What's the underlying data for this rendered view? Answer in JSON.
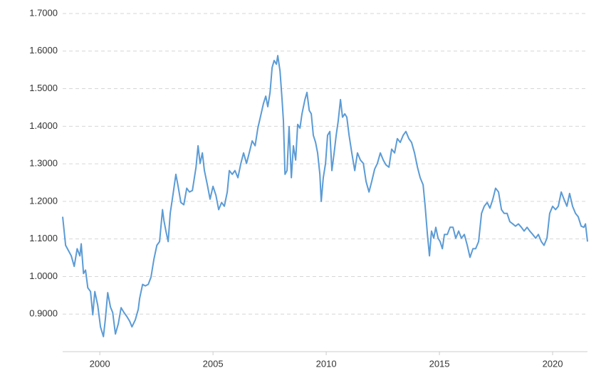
{
  "chart_data": {
    "type": "line",
    "color": "#5b9bd5",
    "grid": true,
    "xlim": [
      1998.36,
      2021.54
    ],
    "xticks": [
      2000,
      2005,
      2010,
      2015,
      2020
    ],
    "ylim": [
      0.8,
      1.7
    ],
    "yticks": [
      {
        "value": 0.9,
        "label": "0.9000"
      },
      {
        "value": 1.0,
        "label": "1.0000"
      },
      {
        "value": 1.1,
        "label": "1.1000"
      },
      {
        "value": 1.2,
        "label": "1.2000"
      },
      {
        "value": 1.3,
        "label": "1.3000"
      },
      {
        "value": 1.4,
        "label": "1.4000"
      },
      {
        "value": 1.5,
        "label": "1.5000"
      },
      {
        "value": 1.6,
        "label": "1.6000"
      },
      {
        "value": 1.7,
        "label": "1.7000"
      }
    ],
    "x": [
      1998.36,
      1998.49,
      1998.74,
      1998.87,
      1999.0,
      1999.12,
      1999.18,
      1999.28,
      1999.37,
      1999.47,
      1999.59,
      1999.69,
      1999.78,
      1999.91,
      2000.03,
      2000.16,
      2000.25,
      2000.35,
      2000.47,
      2000.57,
      2000.69,
      2000.82,
      2000.94,
      2001.07,
      2001.19,
      2001.32,
      2001.42,
      2001.57,
      2001.7,
      2001.76,
      2001.89,
      2002.01,
      2002.14,
      2002.26,
      2002.39,
      2002.52,
      2002.64,
      2002.77,
      2002.83,
      2002.92,
      2003.02,
      2003.11,
      2003.24,
      2003.36,
      2003.46,
      2003.58,
      2003.71,
      2003.84,
      2003.96,
      2004.09,
      2004.25,
      2004.34,
      2004.43,
      2004.53,
      2004.62,
      2004.75,
      2004.87,
      2005.0,
      2005.13,
      2005.25,
      2005.38,
      2005.5,
      2005.63,
      2005.72,
      2005.85,
      2005.97,
      2006.1,
      2006.23,
      2006.35,
      2006.48,
      2006.6,
      2006.73,
      2006.86,
      2006.98,
      2007.11,
      2007.23,
      2007.33,
      2007.42,
      2007.52,
      2007.61,
      2007.7,
      2007.8,
      2007.86,
      2007.96,
      2008.05,
      2008.11,
      2008.18,
      2008.27,
      2008.36,
      2008.46,
      2008.55,
      2008.65,
      2008.74,
      2008.84,
      2008.93,
      2009.06,
      2009.15,
      2009.25,
      2009.34,
      2009.43,
      2009.53,
      2009.62,
      2009.72,
      2009.78,
      2009.87,
      2009.97,
      2010.06,
      2010.16,
      2010.25,
      2010.35,
      2010.44,
      2010.53,
      2010.63,
      2010.72,
      2010.82,
      2010.91,
      2011.01,
      2011.13,
      2011.26,
      2011.38,
      2011.51,
      2011.64,
      2011.76,
      2011.89,
      2012.01,
      2012.14,
      2012.26,
      2012.39,
      2012.52,
      2012.64,
      2012.77,
      2012.89,
      2013.02,
      2013.14,
      2013.27,
      2013.4,
      2013.52,
      2013.65,
      2013.77,
      2013.9,
      2014.03,
      2014.15,
      2014.28,
      2014.37,
      2014.47,
      2014.56,
      2014.65,
      2014.75,
      2014.84,
      2014.94,
      2015.03,
      2015.13,
      2015.22,
      2015.35,
      2015.47,
      2015.6,
      2015.72,
      2015.85,
      2015.97,
      2016.1,
      2016.23,
      2016.35,
      2016.48,
      2016.6,
      2016.73,
      2016.86,
      2016.98,
      2017.11,
      2017.23,
      2017.36,
      2017.48,
      2017.61,
      2017.74,
      2017.86,
      2017.99,
      2018.11,
      2018.24,
      2018.36,
      2018.49,
      2018.62,
      2018.74,
      2018.87,
      2018.99,
      2019.12,
      2019.25,
      2019.37,
      2019.5,
      2019.62,
      2019.75,
      2019.87,
      2020.0,
      2020.13,
      2020.25,
      2020.38,
      2020.5,
      2020.63,
      2020.75,
      2020.88,
      2021.01,
      2021.13,
      2021.26,
      2021.38,
      2021.45,
      2021.54
    ],
    "values": [
      1.159,
      1.083,
      1.055,
      1.027,
      1.074,
      1.055,
      1.087,
      1.008,
      1.017,
      0.97,
      0.96,
      0.898,
      0.96,
      0.923,
      0.866,
      0.84,
      0.889,
      0.957,
      0.919,
      0.904,
      0.847,
      0.875,
      0.917,
      0.904,
      0.894,
      0.881,
      0.866,
      0.885,
      0.913,
      0.942,
      0.979,
      0.975,
      0.979,
      0.998,
      1.046,
      1.083,
      1.093,
      1.178,
      1.15,
      1.121,
      1.093,
      1.168,
      1.221,
      1.272,
      1.24,
      1.197,
      1.191,
      1.235,
      1.225,
      1.229,
      1.291,
      1.348,
      1.301,
      1.329,
      1.282,
      1.244,
      1.206,
      1.24,
      1.216,
      1.178,
      1.197,
      1.187,
      1.225,
      1.282,
      1.272,
      1.282,
      1.263,
      1.301,
      1.329,
      1.301,
      1.329,
      1.361,
      1.348,
      1.395,
      1.429,
      1.461,
      1.48,
      1.452,
      1.49,
      1.556,
      1.575,
      1.565,
      1.588,
      1.547,
      1.471,
      1.414,
      1.272,
      1.282,
      1.399,
      1.263,
      1.348,
      1.31,
      1.405,
      1.395,
      1.433,
      1.471,
      1.49,
      1.442,
      1.433,
      1.376,
      1.357,
      1.329,
      1.272,
      1.2,
      1.263,
      1.301,
      1.376,
      1.386,
      1.282,
      1.329,
      1.376,
      1.414,
      1.471,
      1.424,
      1.433,
      1.424,
      1.376,
      1.329,
      1.282,
      1.329,
      1.31,
      1.301,
      1.253,
      1.225,
      1.253,
      1.286,
      1.301,
      1.329,
      1.31,
      1.297,
      1.291,
      1.339,
      1.329,
      1.367,
      1.357,
      1.376,
      1.386,
      1.367,
      1.357,
      1.329,
      1.291,
      1.263,
      1.244,
      1.187,
      1.112,
      1.055,
      1.121,
      1.102,
      1.131,
      1.102,
      1.093,
      1.074,
      1.112,
      1.112,
      1.131,
      1.131,
      1.102,
      1.121,
      1.102,
      1.112,
      1.083,
      1.051,
      1.074,
      1.074,
      1.093,
      1.168,
      1.187,
      1.197,
      1.182,
      1.206,
      1.235,
      1.225,
      1.178,
      1.168,
      1.168,
      1.146,
      1.14,
      1.134,
      1.14,
      1.131,
      1.121,
      1.131,
      1.121,
      1.112,
      1.102,
      1.112,
      1.093,
      1.083,
      1.102,
      1.168,
      1.187,
      1.178,
      1.187,
      1.225,
      1.206,
      1.187,
      1.221,
      1.187,
      1.168,
      1.159,
      1.134,
      1.131,
      1.14,
      1.093
    ]
  }
}
